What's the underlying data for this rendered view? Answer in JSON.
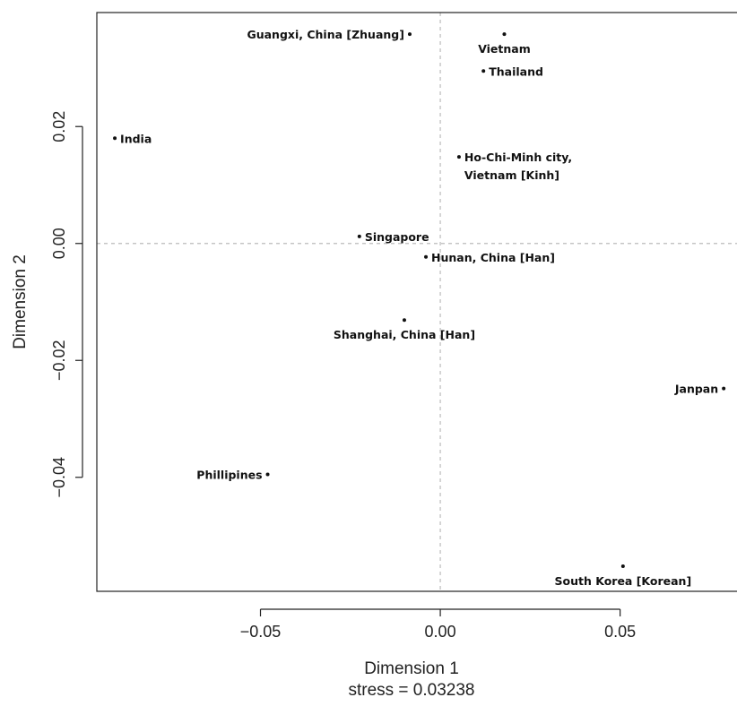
{
  "chart_data": {
    "type": "scatter",
    "xlabel": "Dimension 1",
    "ylabel": "Dimension 2",
    "stress_label": "stress = 0.03238",
    "xlim": [
      -0.0955,
      0.0825
    ],
    "ylim": [
      -0.0595,
      0.0395
    ],
    "x_ticks": [
      {
        "value": -0.05,
        "label": "−0.05"
      },
      {
        "value": 0.0,
        "label": "0.00"
      },
      {
        "value": 0.05,
        "label": "0.05"
      }
    ],
    "y_ticks": [
      {
        "value": -0.04,
        "label": "−0.04"
      },
      {
        "value": -0.02,
        "label": "−0.02"
      },
      {
        "value": 0.0,
        "label": "0.00"
      },
      {
        "value": 0.02,
        "label": "0.02"
      }
    ],
    "reference_lines": {
      "x": 0,
      "y": 0
    },
    "grid": false,
    "points": [
      {
        "label": "Guangxi, China [Zhuang]",
        "x": -0.0085,
        "y": 0.0358,
        "anchor": "end",
        "line2": ""
      },
      {
        "label": "Vietnam",
        "x": 0.0178,
        "y": 0.0358,
        "anchor": "middle",
        "line2": ""
      },
      {
        "label": "Thailand",
        "x": 0.012,
        "y": 0.0295,
        "anchor": "start",
        "line2": ""
      },
      {
        "label": "India",
        "x": -0.0905,
        "y": 0.018,
        "anchor": "start",
        "line2": ""
      },
      {
        "label": "Ho-Chi-Minh city,",
        "x": 0.0052,
        "y": 0.0148,
        "anchor": "start",
        "line2": "Vietnam [Kinh]"
      },
      {
        "label": "Singapore",
        "x": -0.0225,
        "y": 0.0012,
        "anchor": "start",
        "line2": ""
      },
      {
        "label": "Hunan, China [Han]",
        "x": -0.004,
        "y": -0.0023,
        "anchor": "start",
        "line2": ""
      },
      {
        "label": "Shanghai, China [Han]",
        "x": -0.01,
        "y": -0.0131,
        "anchor": "middle",
        "line2": ""
      },
      {
        "label": "Janpan",
        "x": 0.0788,
        "y": -0.0248,
        "anchor": "end",
        "line2": ""
      },
      {
        "label": "Phillipines",
        "x": -0.048,
        "y": -0.0395,
        "anchor": "end",
        "line2": ""
      },
      {
        "label": "South Korea [Korean]",
        "x": 0.0508,
        "y": -0.0552,
        "anchor": "middle",
        "line2": ""
      }
    ]
  }
}
